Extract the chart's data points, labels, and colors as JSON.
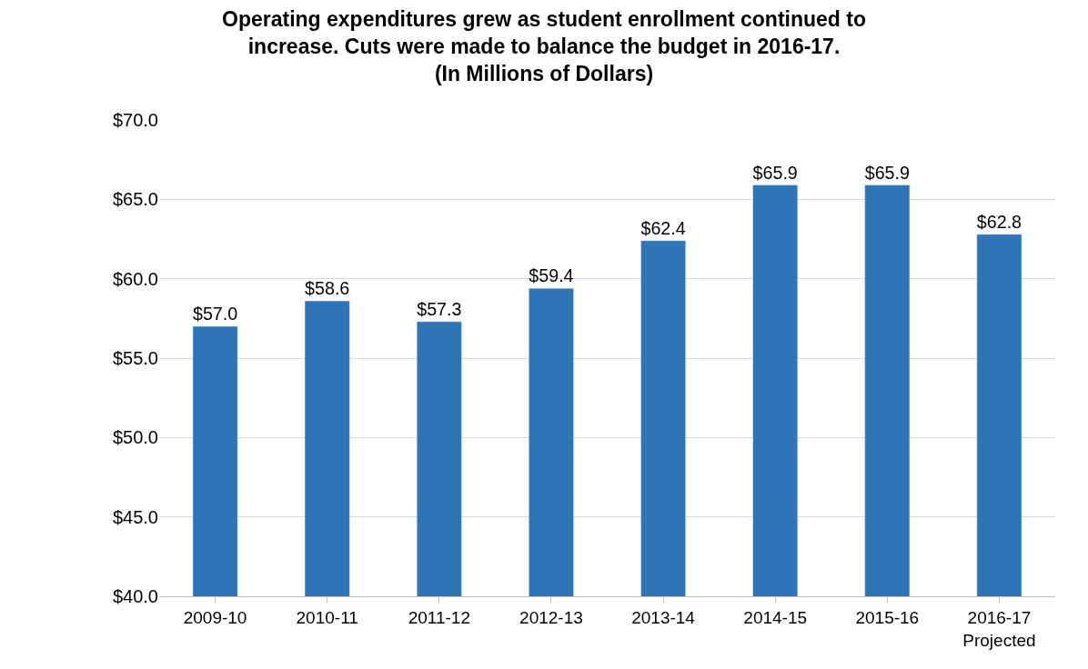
{
  "chart_data": {
    "type": "bar",
    "title": "Operating expenditures grew as student enrollment continued to\nincrease. Cuts were made to balance the budget in 2016-17.\n(In Millions of Dollars)",
    "categories": [
      "2009-10",
      "2010-11",
      "2011-12",
      "2012-13",
      "2013-14",
      "2014-15",
      "2015-16",
      "2016-17\nProjected"
    ],
    "values": [
      57.0,
      58.6,
      57.3,
      59.4,
      62.4,
      65.9,
      65.9,
      62.8
    ],
    "value_labels": [
      "$57.0",
      "$58.6",
      "$57.3",
      "$59.4",
      "$62.4",
      "$65.9",
      "$65.9",
      "$62.8"
    ],
    "color": "#2e75b6",
    "ylim": [
      40,
      70
    ],
    "yticks": [
      {
        "value": 40,
        "label": "$40.0"
      },
      {
        "value": 45,
        "label": "$45.0"
      },
      {
        "value": 50,
        "label": "$50.0"
      },
      {
        "value": 55,
        "label": "$55.0"
      },
      {
        "value": 60,
        "label": "$60.0"
      },
      {
        "value": 65,
        "label": "$65.0"
      },
      {
        "value": 70,
        "label": "$70.0"
      }
    ],
    "grid": "y"
  }
}
